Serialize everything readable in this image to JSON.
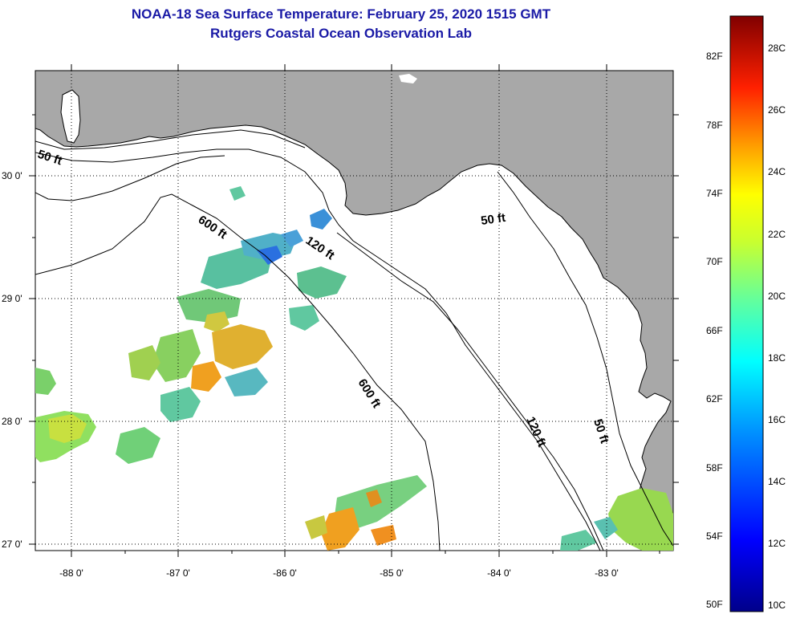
{
  "header": {
    "title": "NOAA-18 Sea Surface Temperature:  February 25, 2020 1515 GMT",
    "subtitle": "Rutgers Coastal Ocean Observation Lab"
  },
  "axes": {
    "longitude_labels": [
      "-88 0'",
      "-87 0'",
      "-86 0'",
      "-85 0'",
      "-84 0'",
      "-83 0'"
    ],
    "latitude_labels": [
      "30 0'",
      "29 0'",
      "28 0'",
      "27 0'"
    ]
  },
  "contours": {
    "labels": [
      "50 ft",
      "600 ft",
      "120 ft",
      "50 ft",
      "600 ft",
      "120 ft",
      "50 ft"
    ]
  },
  "colorbar": {
    "fahrenheit": [
      "82F",
      "78F",
      "74F",
      "70F",
      "66F",
      "62F",
      "58F",
      "54F",
      "50F"
    ],
    "celsius": [
      "28C",
      "26C",
      "24C",
      "22C",
      "20C",
      "18C",
      "16C",
      "14C",
      "12C",
      "10C"
    ],
    "colors": [
      "#8b0000",
      "#ff0000",
      "#ff8c00",
      "#ffff00",
      "#7fff7f",
      "#00ffff",
      "#0080ff",
      "#0000ff",
      "#000080"
    ]
  },
  "colors": {
    "land": "#a8a8a8",
    "ocean": "#ffffff",
    "title": "#1a1aa6"
  }
}
